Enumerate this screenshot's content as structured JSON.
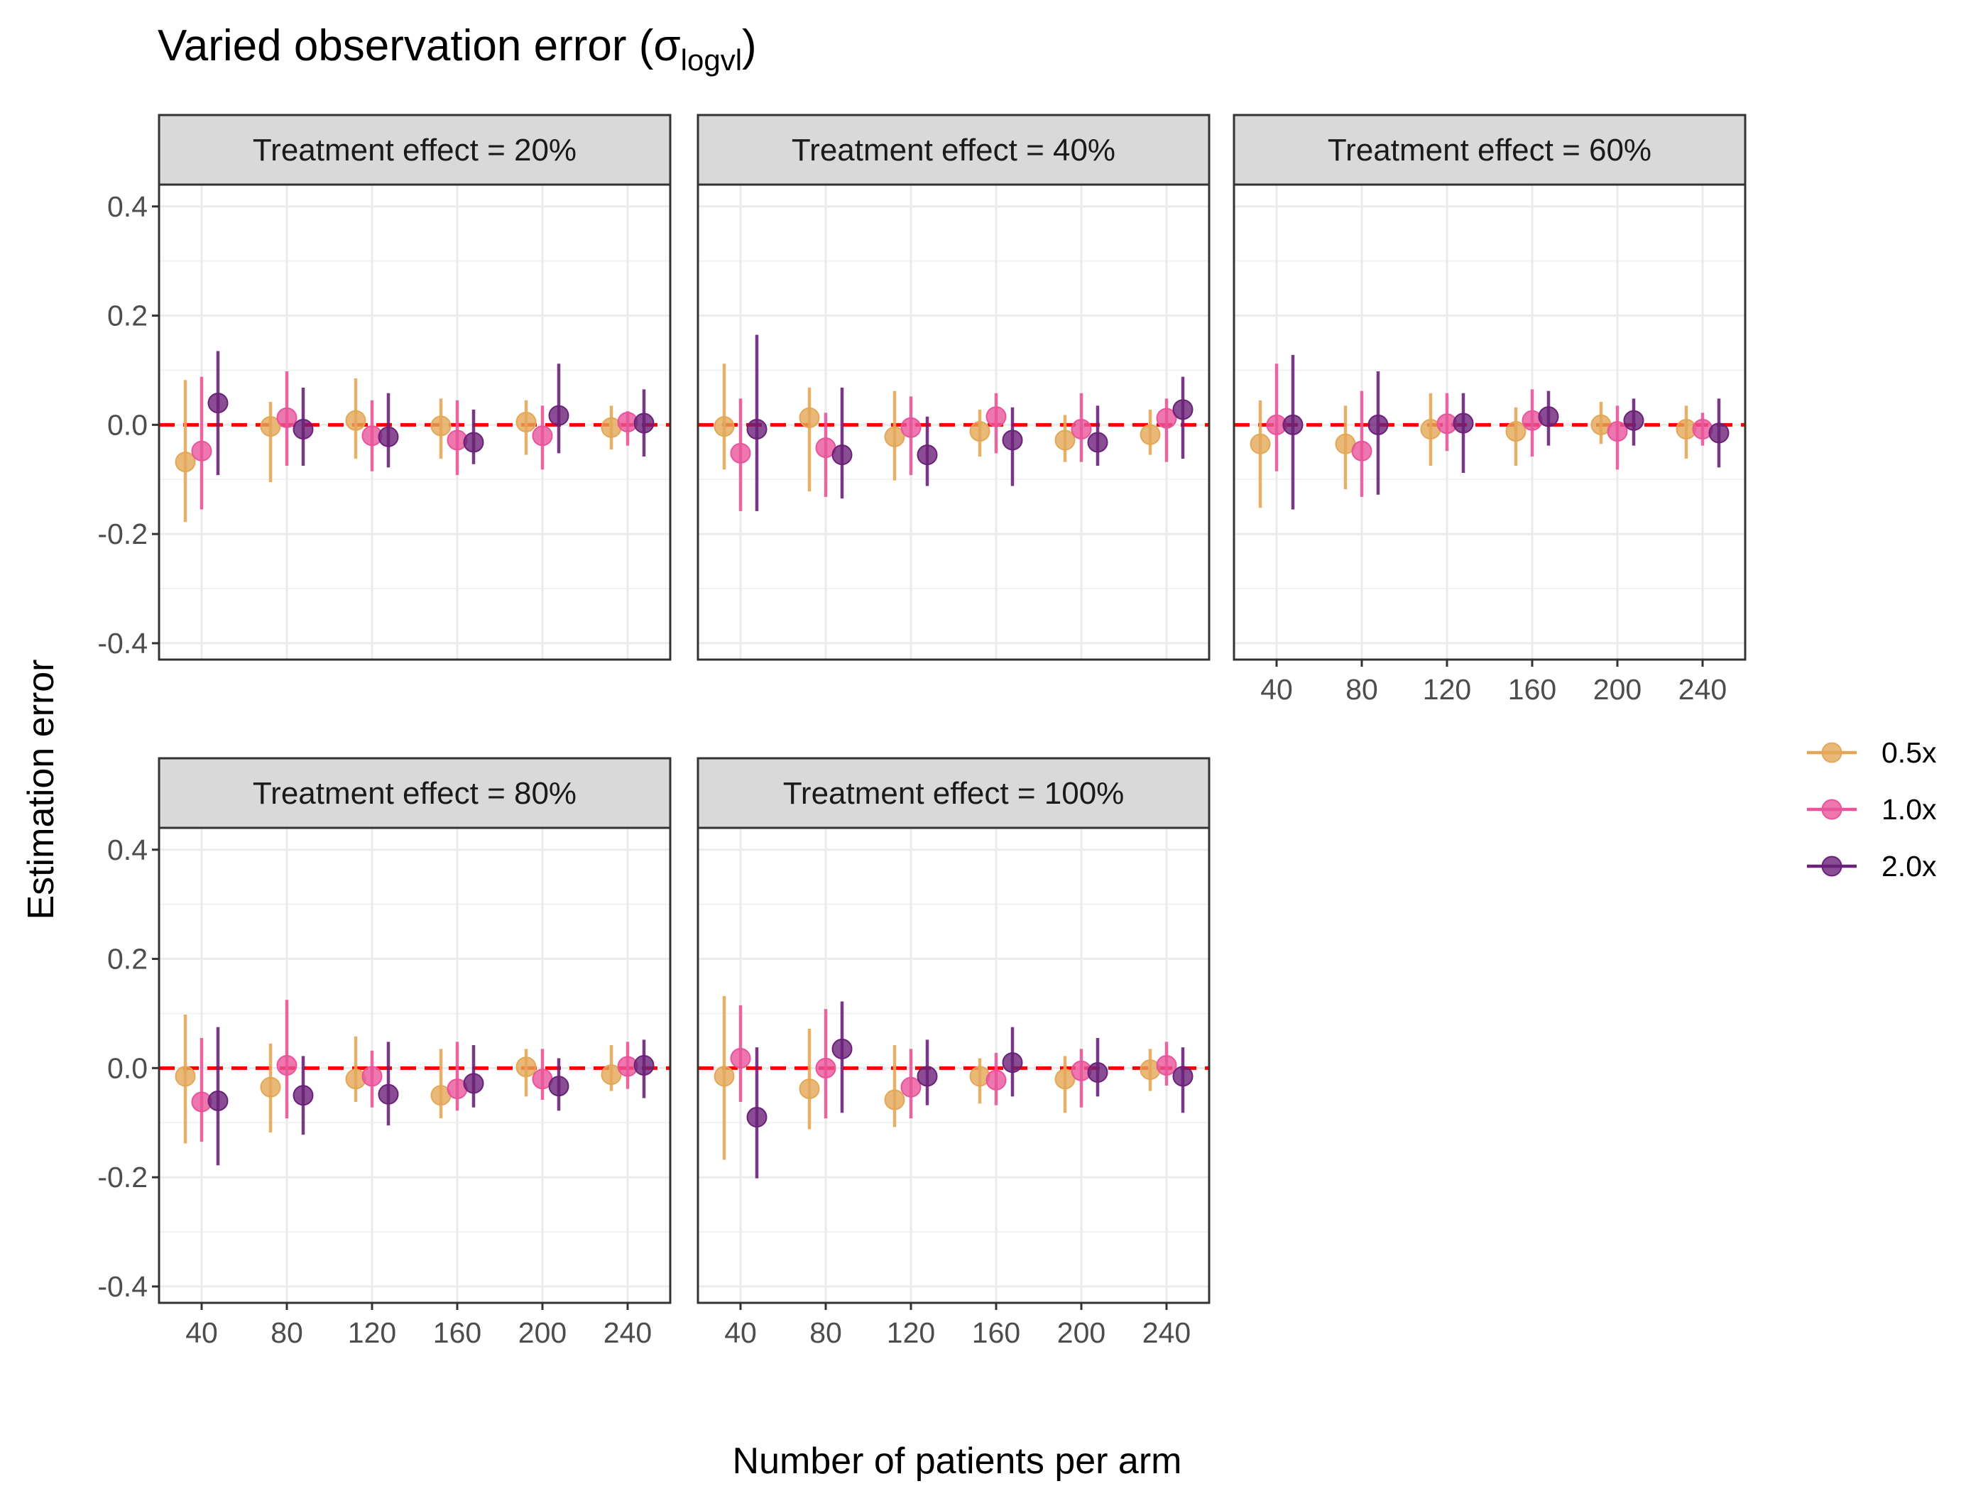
{
  "chart_data": {
    "type": "scatter",
    "title": "Varied observation error (",
    "title_symbol": "σ",
    "title_subscript": "logvl",
    "title_close": ")",
    "xlabel": "Number of patients per arm",
    "ylabel": "Estimation error",
    "x_categories": [
      "40",
      "80",
      "120",
      "160",
      "200",
      "240"
    ],
    "y_ticks": [
      0.4,
      0.2,
      0.0,
      -0.2,
      -0.4
    ],
    "y_tick_labels": [
      "0.4",
      "0.2",
      "0.0",
      "-0.2",
      "-0.4"
    ],
    "ylim": [
      -0.43,
      0.44
    ],
    "reference_line": {
      "y": 0.0,
      "color": "#FF0000",
      "style": "dashed"
    },
    "grid": true,
    "legend_position": "right",
    "series": [
      {
        "name": "0.5x",
        "color": "#E3A857"
      },
      {
        "name": "1.0x",
        "color": "#E8559A"
      },
      {
        "name": "2.0x",
        "color": "#6A2178"
      }
    ],
    "panels": [
      {
        "label": "Treatment effect = 20%",
        "data": [
          {
            "series": "0.5x",
            "est": [
              -0.068,
              -0.003,
              0.008,
              -0.002,
              0.005,
              -0.005
            ],
            "lo": [
              -0.178,
              -0.105,
              -0.062,
              -0.062,
              -0.055,
              -0.045
            ],
            "hi": [
              0.082,
              0.042,
              0.085,
              0.048,
              0.045,
              0.035
            ]
          },
          {
            "series": "1.0x",
            "est": [
              -0.048,
              0.013,
              -0.02,
              -0.028,
              -0.02,
              0.005
            ],
            "lo": [
              -0.155,
              -0.075,
              -0.085,
              -0.092,
              -0.082,
              -0.038
            ],
            "hi": [
              0.088,
              0.098,
              0.045,
              0.045,
              0.035,
              0.025
            ]
          },
          {
            "series": "2.0x",
            "est": [
              0.04,
              -0.008,
              -0.022,
              -0.032,
              0.017,
              0.003
            ],
            "lo": [
              -0.092,
              -0.075,
              -0.078,
              -0.072,
              -0.052,
              -0.058
            ],
            "hi": [
              0.135,
              0.068,
              0.058,
              0.028,
              0.112,
              0.065
            ]
          }
        ]
      },
      {
        "label": "Treatment effect = 40%",
        "data": [
          {
            "series": "0.5x",
            "est": [
              -0.003,
              0.013,
              -0.022,
              -0.012,
              -0.028,
              -0.018
            ],
            "lo": [
              -0.082,
              -0.122,
              -0.102,
              -0.058,
              -0.068,
              -0.055
            ],
            "hi": [
              0.112,
              0.068,
              0.062,
              0.028,
              0.018,
              0.028
            ]
          },
          {
            "series": "1.0x",
            "est": [
              -0.052,
              -0.042,
              -0.005,
              0.015,
              -0.008,
              0.012
            ],
            "lo": [
              -0.158,
              -0.132,
              -0.092,
              -0.052,
              -0.068,
              -0.068
            ],
            "hi": [
              0.048,
              0.022,
              0.052,
              0.058,
              0.058,
              0.048
            ]
          },
          {
            "series": "2.0x",
            "est": [
              -0.008,
              -0.055,
              -0.055,
              -0.028,
              -0.032,
              0.028
            ],
            "lo": [
              -0.158,
              -0.135,
              -0.112,
              -0.112,
              -0.075,
              -0.062
            ],
            "hi": [
              0.165,
              0.068,
              0.015,
              0.032,
              0.035,
              0.088
            ]
          }
        ]
      },
      {
        "label": "Treatment effect = 60%",
        "data": [
          {
            "series": "0.5x",
            "est": [
              -0.035,
              -0.035,
              -0.008,
              -0.012,
              0.0,
              -0.008
            ],
            "lo": [
              -0.152,
              -0.118,
              -0.075,
              -0.075,
              -0.035,
              -0.062
            ],
            "hi": [
              0.045,
              0.035,
              0.058,
              0.032,
              0.042,
              0.035
            ]
          },
          {
            "series": "1.0x",
            "est": [
              0.0,
              -0.048,
              0.002,
              0.008,
              -0.012,
              -0.008
            ],
            "lo": [
              -0.085,
              -0.132,
              -0.048,
              -0.058,
              -0.082,
              -0.038
            ],
            "hi": [
              0.112,
              0.062,
              0.058,
              0.065,
              0.035,
              0.022
            ]
          },
          {
            "series": "2.0x",
            "est": [
              0.0,
              0.0,
              0.003,
              0.015,
              0.008,
              -0.015
            ],
            "lo": [
              -0.155,
              -0.128,
              -0.088,
              -0.038,
              -0.038,
              -0.078
            ],
            "hi": [
              0.128,
              0.098,
              0.058,
              0.062,
              0.048,
              0.048
            ]
          }
        ]
      },
      {
        "label": "Treatment effect = 80%",
        "data": [
          {
            "series": "0.5x",
            "est": [
              -0.015,
              -0.035,
              -0.02,
              -0.05,
              0.002,
              -0.012
            ],
            "lo": [
              -0.138,
              -0.118,
              -0.062,
              -0.092,
              -0.052,
              -0.042
            ],
            "hi": [
              0.098,
              0.045,
              0.058,
              0.035,
              0.035,
              0.042
            ]
          },
          {
            "series": "1.0x",
            "est": [
              -0.062,
              0.005,
              -0.015,
              -0.038,
              -0.02,
              0.003
            ],
            "lo": [
              -0.135,
              -0.092,
              -0.072,
              -0.078,
              -0.058,
              -0.038
            ],
            "hi": [
              0.055,
              0.125,
              0.032,
              0.048,
              0.035,
              0.048
            ]
          },
          {
            "series": "2.0x",
            "est": [
              -0.06,
              -0.05,
              -0.048,
              -0.028,
              -0.033,
              0.005
            ],
            "lo": [
              -0.178,
              -0.122,
              -0.105,
              -0.072,
              -0.078,
              -0.055
            ],
            "hi": [
              0.075,
              0.022,
              0.048,
              0.042,
              0.018,
              0.052
            ]
          }
        ]
      },
      {
        "label": "Treatment effect = 100%",
        "data": [
          {
            "series": "0.5x",
            "est": [
              -0.015,
              -0.038,
              -0.058,
              -0.015,
              -0.02,
              -0.003
            ],
            "lo": [
              -0.168,
              -0.112,
              -0.108,
              -0.065,
              -0.082,
              -0.042
            ],
            "hi": [
              0.132,
              0.072,
              0.042,
              0.018,
              0.022,
              0.035
            ]
          },
          {
            "series": "1.0x",
            "est": [
              0.018,
              0.0,
              -0.035,
              -0.022,
              -0.005,
              0.005
            ],
            "lo": [
              -0.062,
              -0.092,
              -0.092,
              -0.068,
              -0.072,
              -0.032
            ],
            "hi": [
              0.115,
              0.108,
              0.035,
              0.028,
              0.035,
              0.048
            ]
          },
          {
            "series": "2.0x",
            "est": [
              -0.09,
              0.035,
              -0.015,
              0.01,
              -0.008,
              -0.015
            ],
            "lo": [
              -0.202,
              -0.082,
              -0.068,
              -0.052,
              -0.052,
              -0.082
            ],
            "hi": [
              0.038,
              0.122,
              0.052,
              0.075,
              0.055,
              0.038
            ]
          }
        ]
      }
    ]
  }
}
